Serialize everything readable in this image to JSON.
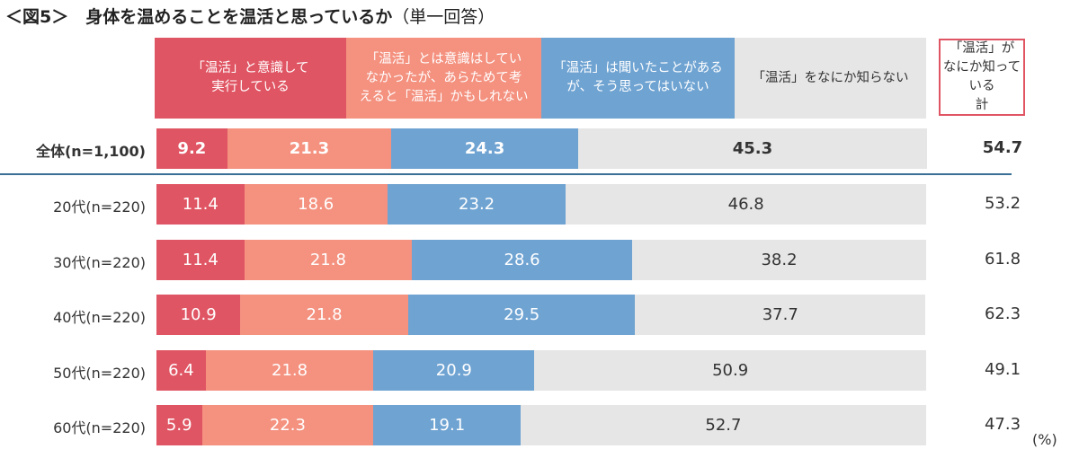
{
  "chart_data": {
    "type": "bar",
    "orientation": "horizontal-stacked-100",
    "title": "＜図5＞　身体を温めることを温活と思っているか",
    "subtitle": "（単一回答）",
    "unit": "(%)",
    "colors": [
      "#e05563",
      "#f4917f",
      "#6fa3d2",
      "#e6e6e6"
    ],
    "series": [
      {
        "name": "「温活」と意識して\n実行している"
      },
      {
        "name": "「温活」とは意識はしてい\nなかったが、あらためて考\nえると「温活」かもしれない"
      },
      {
        "name": "「温活」は聞いたことがある\nが、そう思ってはいない"
      },
      {
        "name": "「温活」をなにか知らない"
      }
    ],
    "total_header": "「温活」が\nなにか知っている\n計",
    "categories": [
      "全体(n=1,100)",
      "20代(n=220)",
      "30代(n=220)",
      "40代(n=220)",
      "50代(n=220)",
      "60代(n=220)"
    ],
    "values": [
      [
        "9.2",
        "21.3",
        "24.3",
        "45.3"
      ],
      [
        "11.4",
        "18.6",
        "23.2",
        "46.8"
      ],
      [
        "11.4",
        "21.8",
        "28.6",
        "38.2"
      ],
      [
        "10.9",
        "21.8",
        "29.5",
        "37.7"
      ],
      [
        "6.4",
        "21.8",
        "20.9",
        "50.9"
      ],
      [
        "5.9",
        "22.3",
        "19.1",
        "52.7"
      ]
    ],
    "totals": [
      "54.7",
      "53.2",
      "61.8",
      "62.3",
      "49.1",
      "47.3"
    ],
    "xlim": [
      0,
      100
    ]
  }
}
